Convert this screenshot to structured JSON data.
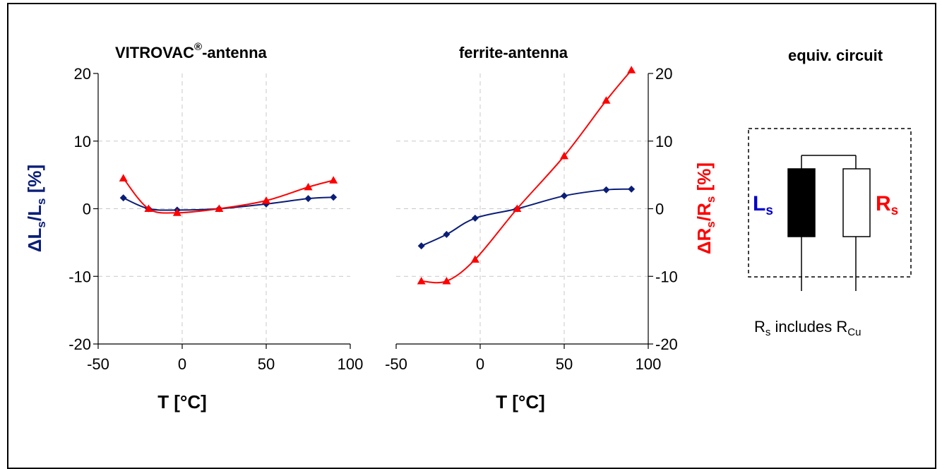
{
  "colors": {
    "blue": "#0a1e78",
    "red": "#ff0000",
    "text_blue": "#0000cc"
  },
  "panels": {
    "left_title": "VITROVAC",
    "left_title_sup": "®",
    "left_title_suffix": "-antenna",
    "right_title": "ferrite-antenna",
    "circuit_title": "equiv. circuit"
  },
  "axes": {
    "xlabel": "T [°C]",
    "y_left_label": {
      "delta": "Δ",
      "L": "L",
      "s": "s",
      "slash": "/",
      "pct": " [%]"
    },
    "y_right_label": {
      "delta": "Δ",
      "R": "R",
      "s": "s",
      "slash": "/",
      "pct": " [%]"
    }
  },
  "circuit": {
    "Ls_main": "L",
    "Ls_sub": "s",
    "Rs_main": "R",
    "Rs_sub": "s",
    "note_R": "R",
    "note_s": "s",
    "note_mid": " includes R",
    "note_Cu": "Cu"
  },
  "chart_data": [
    {
      "type": "line",
      "title": "VITROVAC®-antenna",
      "xlabel": "T [°C]",
      "ylabel": "ΔLs/Ls [%]",
      "xlim": [
        -50,
        100
      ],
      "ylim": [
        -20,
        20
      ],
      "xticks": [
        -50,
        0,
        50,
        100
      ],
      "yticks": [
        -20,
        -10,
        0,
        10,
        20
      ],
      "grid": true,
      "series": [
        {
          "color": "#0a1e78",
          "marker": "diamond",
          "x": [
            -35,
            -20,
            -3,
            22,
            50,
            75,
            90
          ],
          "y": [
            1.6,
            0.0,
            -0.2,
            0.0,
            0.7,
            1.5,
            1.7
          ]
        },
        {
          "color": "#ff0000",
          "marker": "triangle",
          "x": [
            -35,
            -20,
            -3,
            22,
            50,
            75,
            90
          ],
          "y": [
            4.5,
            0.0,
            -0.6,
            0.0,
            1.2,
            3.2,
            4.2
          ]
        }
      ]
    },
    {
      "type": "line",
      "title": "ferrite-antenna",
      "xlabel": "T [°C]",
      "ylabel": "ΔRs/Rs [%]",
      "xlim": [
        -50,
        100
      ],
      "ylim": [
        -20,
        20
      ],
      "xticks": [
        -50,
        0,
        50,
        100
      ],
      "yticks": [
        -20,
        -10,
        0,
        10,
        20
      ],
      "grid": true,
      "series": [
        {
          "color": "#0a1e78",
          "marker": "diamond",
          "x": [
            -35,
            -20,
            -3,
            22,
            50,
            75,
            90
          ],
          "y": [
            -5.5,
            -3.8,
            -1.4,
            0.0,
            1.9,
            2.8,
            2.9
          ]
        },
        {
          "color": "#ff0000",
          "marker": "triangle",
          "x": [
            -35,
            -20,
            -3,
            22,
            50,
            75,
            90
          ],
          "y": [
            -10.7,
            -10.7,
            -7.5,
            0.0,
            7.8,
            16.0,
            20.5
          ]
        }
      ]
    }
  ]
}
